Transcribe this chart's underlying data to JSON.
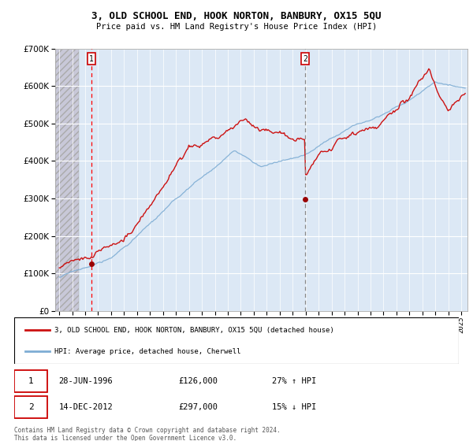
{
  "title": "3, OLD SCHOOL END, HOOK NORTON, BANBURY, OX15 5QU",
  "subtitle": "Price paid vs. HM Land Registry's House Price Index (HPI)",
  "ylim": [
    0,
    700000
  ],
  "yticks": [
    0,
    100000,
    200000,
    300000,
    400000,
    500000,
    600000,
    700000
  ],
  "ytick_labels": [
    "£0",
    "£100K",
    "£200K",
    "£300K",
    "£400K",
    "£500K",
    "£600K",
    "£700K"
  ],
  "xlim_start": 1993.7,
  "xlim_end": 2025.5,
  "hpi_color": "#7eadd4",
  "price_color": "#cc1111",
  "marker1_date": 1996.49,
  "marker1_price": 126000,
  "marker1_label": "28-JUN-1996",
  "marker1_value": "£126,000",
  "marker1_note": "27% ↑ HPI",
  "marker2_date": 2012.96,
  "marker2_price": 297000,
  "marker2_label": "14-DEC-2012",
  "marker2_value": "£297,000",
  "marker2_note": "15% ↓ HPI",
  "legend_line1": "3, OLD SCHOOL END, HOOK NORTON, BANBURY, OX15 5QU (detached house)",
  "legend_line2": "HPI: Average price, detached house, Cherwell",
  "footer": "Contains HM Land Registry data © Crown copyright and database right 2024.\nThis data is licensed under the Open Government Licence v3.0.",
  "bg_plot_color": "#dce8f5",
  "hatch_color": "#c8c8d8"
}
